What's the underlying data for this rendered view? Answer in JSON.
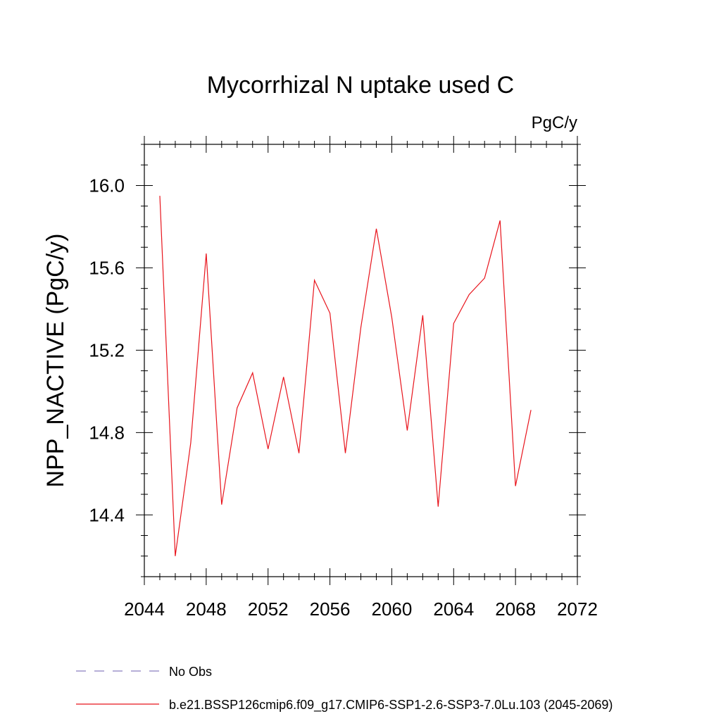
{
  "chart_data": {
    "type": "line",
    "title": "Mycorrhizal N uptake used C",
    "units_label": "PgC/y",
    "ylabel": "NPP_NACTIVE  (PgC/y)",
    "xlabel": "",
    "xlim": [
      2044,
      2072
    ],
    "ylim": [
      14.1,
      16.2
    ],
    "x_ticks": [
      2044,
      2048,
      2052,
      2056,
      2060,
      2064,
      2068,
      2072
    ],
    "y_ticks": [
      14.4,
      14.8,
      15.2,
      15.6,
      16.0
    ],
    "y_tick_labels": [
      "14.4",
      "14.8",
      "15.2",
      "15.6",
      "16.0"
    ],
    "grid": false,
    "legend_position": "bottom-left",
    "series": [
      {
        "name": "b.e21.BSSP126cmip6.f09_g17.CMIP6-SSP1-2.6-SSP3-7.0Lu.103 (2045-2069)",
        "color": "#e8141c",
        "style": "solid",
        "x": [
          2045,
          2046,
          2047,
          2048,
          2049,
          2050,
          2051,
          2052,
          2053,
          2054,
          2055,
          2056,
          2057,
          2058,
          2059,
          2060,
          2061,
          2062,
          2063,
          2064,
          2065,
          2066,
          2067,
          2068,
          2069
        ],
        "y": [
          15.95,
          14.2,
          14.75,
          15.67,
          14.45,
          14.92,
          15.09,
          14.72,
          15.07,
          14.7,
          15.54,
          15.38,
          14.7,
          15.31,
          15.79,
          15.36,
          14.81,
          15.37,
          14.44,
          15.33,
          15.47,
          15.55,
          15.83,
          14.54,
          14.91
        ]
      }
    ],
    "legend": [
      {
        "label": "No Obs",
        "color": "#8a7fc0",
        "style": "dashed"
      },
      {
        "label": "b.e21.BSSP126cmip6.f09_g17.CMIP6-SSP1-2.6-SSP3-7.0Lu.103 (2045-2069)",
        "color": "#e8141c",
        "style": "solid"
      }
    ]
  }
}
